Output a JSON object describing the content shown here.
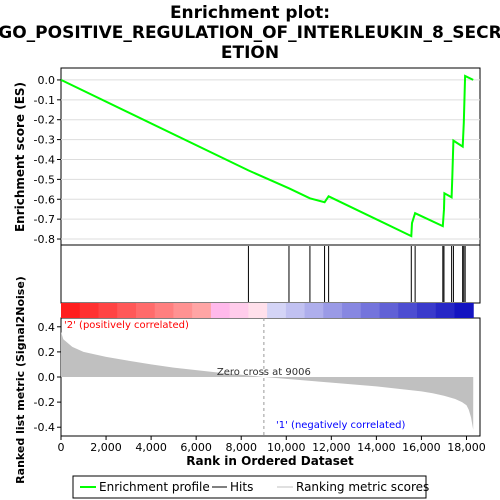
{
  "title_lines": [
    "Enrichment plot:",
    "GO_POSITIVE_REGULATION_OF_INTERLEUKIN_8_SECR",
    "ETION"
  ],
  "colors": {
    "enrichment": "#00ff00",
    "hits": "#000000",
    "ranking": "#c0c0c0",
    "pos_label": "#ff0000",
    "neg_label": "#0000ff",
    "zero_cross_line": "#999999"
  },
  "legend": [
    {
      "label": "Enrichment profile",
      "color": "#00ff00"
    },
    {
      "label": "Hits",
      "color": "#000000"
    },
    {
      "label": "Ranking metric scores",
      "color": "#c0c0c0"
    }
  ],
  "pos_label": "'2' (positively correlated)",
  "neg_label": "'1' (negatively correlated)",
  "zero_cross_label": "Zero cross at 9006",
  "chart_data": {
    "type": "line",
    "xlabel": "Rank in Ordered Dataset",
    "x_ticks": [
      0,
      2000,
      4000,
      6000,
      8000,
      10000,
      12000,
      14000,
      16000,
      18000
    ],
    "x_tick_labels": [
      "0",
      "2,000",
      "4,000",
      "6,000",
      "8,000",
      "10,000",
      "12,000",
      "14,000",
      "16,000",
      "18,000"
    ],
    "xlim": [
      0,
      18600
    ],
    "enrichment": {
      "ylabel": "Enrichment score (ES)",
      "ylim": [
        -0.83,
        0.06
      ],
      "y_ticks": [
        0.0,
        -0.1,
        -0.2,
        -0.3,
        -0.4,
        -0.5,
        -0.6,
        -0.7,
        -0.8
      ],
      "y_tick_labels": [
        "0.0",
        "-0.1",
        "-0.2",
        "-0.3",
        "-0.4",
        "-0.5",
        "-0.6",
        "-0.7",
        "-0.8"
      ],
      "x": [
        0,
        8320,
        10120,
        11050,
        11700,
        11880,
        15550,
        15580,
        15720,
        16950,
        17000,
        17020,
        17340,
        17370,
        17420,
        17830,
        17880,
        17940,
        18300
      ],
      "y": [
        0.0,
        -0.455,
        -0.545,
        -0.595,
        -0.615,
        -0.585,
        -0.785,
        -0.72,
        -0.67,
        -0.735,
        -0.65,
        -0.57,
        -0.59,
        -0.49,
        -0.305,
        -0.335,
        -0.215,
        0.02,
        0.0
      ]
    },
    "hits": [
      8320,
      10120,
      11050,
      11700,
      11880,
      15550,
      15720,
      16950,
      17000,
      17340,
      17420,
      17830,
      17880,
      17940
    ],
    "ranking": {
      "ylabel": "Ranked list metric (Signal2Noise)",
      "ylim": [
        -0.47,
        0.47
      ],
      "y_ticks": [
        0.4,
        0.2,
        0.0,
        -0.2,
        -0.4
      ],
      "y_tick_labels": [
        "0.4",
        "0.2",
        "0.0",
        "-0.2",
        "-0.4"
      ],
      "zero_cross": 9006,
      "total": 18300,
      "profile_x": [
        0,
        100,
        500,
        1000,
        2000,
        3000,
        4000,
        5000,
        6000,
        7000,
        8000,
        9006,
        10000,
        11000,
        12000,
        13000,
        14000,
        15000,
        16000,
        16500,
        17000,
        17500,
        17800,
        18000,
        18100,
        18200,
        18300
      ],
      "profile_y": [
        0.36,
        0.3,
        0.24,
        0.2,
        0.16,
        0.13,
        0.1,
        0.075,
        0.055,
        0.035,
        0.018,
        0.0,
        -0.015,
        -0.03,
        -0.045,
        -0.06,
        -0.075,
        -0.095,
        -0.115,
        -0.13,
        -0.15,
        -0.175,
        -0.2,
        -0.225,
        -0.26,
        -0.32,
        -0.42
      ]
    }
  }
}
